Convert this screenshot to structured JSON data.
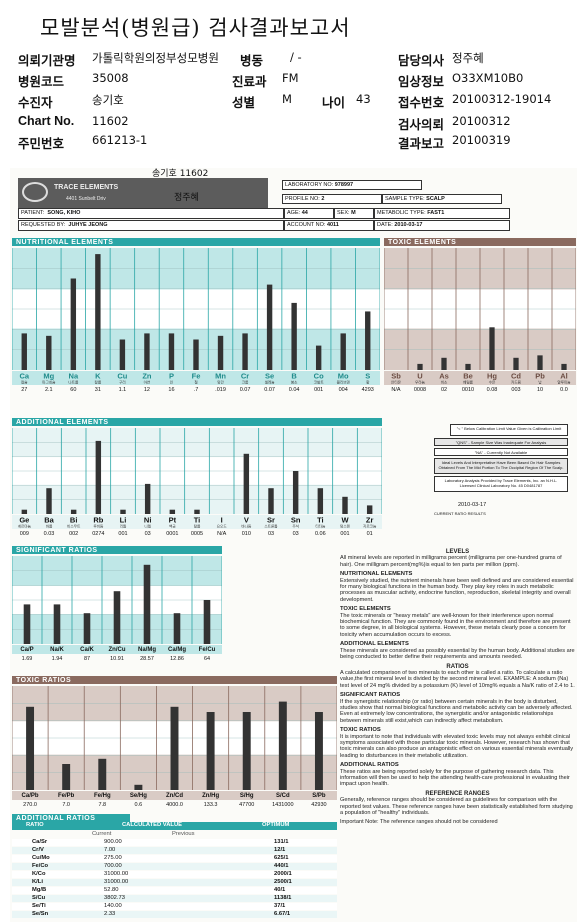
{
  "title": "모발분석(병원급) 검사결과보고서",
  "header": {
    "rows": [
      [
        {
          "label": "의뢰기관명",
          "value": "가톨릭학원의정부성모병원"
        },
        {
          "label": "병동",
          "value": "/ -"
        },
        {
          "label": "담당의사",
          "value": "정주혜"
        }
      ],
      [
        {
          "label": "병원코드",
          "value": "35008"
        },
        {
          "label": "진료과",
          "value": "FM"
        },
        {
          "label": "임상정보",
          "value": "O33XM10B0"
        }
      ],
      [
        {
          "label": "수진자",
          "value": "송기호"
        },
        {
          "label": "성별",
          "value": "M"
        },
        {
          "label": "나이",
          "value": "43"
        },
        {
          "label": "접수번호",
          "value": "20100312-19014"
        }
      ],
      [
        {
          "label": "Chart No.",
          "value": "11602"
        },
        {
          "label": "검사의뢰",
          "value": "20100312"
        }
      ],
      [
        {
          "label": "주민번호",
          "value": "661213-1"
        },
        {
          "label": "결과보고",
          "value": "20100319"
        }
      ]
    ]
  },
  "report": {
    "handwritten": [
      "송기호 11602",
      "정주혜"
    ],
    "lab_name": "TRACE ELEMENTS",
    "lab_address": "4401 Sunbelt Driv",
    "fields": {
      "lab_no_label": "LABORATORY NO:",
      "lab_no": "978997",
      "profile_no_label": "PROFILE NO:",
      "profile_no": "2",
      "sample_type_label": "SAMPLE TYPE:",
      "sample_type": "SCALP",
      "patient_label": "PATIENT:",
      "patient": "SONG, KIHO",
      "age_label": "AGE:",
      "age": "44",
      "sex_label": "SEX:",
      "sex": "M",
      "metabolic_label": "METABOLIC TYPE:",
      "metabolic": "FAST1",
      "requested_label": "REQUESTED BY:",
      "requested": "JUHYE JEONG",
      "account_label": "ACCOUNT NO:",
      "account": "4011",
      "date_label": "DATE:",
      "date": "2010-03-17"
    },
    "sections": {
      "nutritional": "NUTRITIONAL ELEMENTS",
      "toxic": "TOXIC ELEMENTS",
      "additional": "ADDITIONAL ELEMENTS",
      "significant": "SIGNIFICANT RATIOS",
      "toxic_ratios": "TOXIC RATIOS",
      "additional_ratios": "ADDITIONAL RATIOS"
    },
    "notes": {
      "below": "\"< \" Below Calibration Limit Value Given is Calibration Limit",
      "qns": "\"QNS\" - Sample Size Was Inadequate For Analysis",
      "na": "\"NA\" - Currently Not Available",
      "ideal": "Ideal Levels And Interpretative Have Been Based On Hair Samples Obtained From The Mid Portion To The Occipital Region Of The Scalp.",
      "lab": "Laboratory Analysis Provided by Trace Elements, Inc. an N.H.L. Licensed Clinical Laboratory No. 45 D0481787",
      "date": "2010-03-17",
      "current": "CURRENT RATIO RESULTS"
    },
    "ratio_table": {
      "headers": [
        "RATIO",
        "CALCULATED VALUE",
        "OPTIMUM"
      ],
      "subheaders": [
        "Current",
        "Previous"
      ],
      "rows": [
        [
          "Ca/Sr",
          "900.00",
          "131/1"
        ],
        [
          "Cr/V",
          "7.00",
          "12/1"
        ],
        [
          "Cu/Mo",
          "275.00",
          "625/1"
        ],
        [
          "Fe/Co",
          "700.00",
          "440/1"
        ],
        [
          "K/Co",
          "31000.00",
          "2000/1"
        ],
        [
          "K/Li",
          "31000.00",
          "2500/1"
        ],
        [
          "Mg/B",
          "52.80",
          "40/1"
        ],
        [
          "S/Cu",
          "3802.73",
          "1138/1"
        ],
        [
          "Se/Ti",
          "140.00",
          "37/1"
        ],
        [
          "Se/Sn",
          "2.33",
          "6.67/1"
        ]
      ]
    },
    "text": {
      "levels_h": "LEVELS",
      "levels": "All mineral levels are reported in milligrams percent (milligrams per one-hundred grams of hair). One milligram percent(mg%)is equal to ten parts per million (ppm).",
      "nutri_h": "NUTRITIONAL ELEMENTS",
      "nutri": "Extensively studied, the nutrient minerals have been well defined and are considered essential for many biological functions in the human body. They play key roles in such metabolic processes as muscular activity, endocrine function, reproduction, skeletal integrity and overall development.",
      "toxic_h": "TOXIC ELEMENTS",
      "toxic": "The toxic minerals or \"heavy metals\" are well-known for their interference upon normal biochemical function. They are commonly found in the environment and therefore are present to some degree, in all biological systems. However, these metals clearly pose a concern for toxicity when accumulation occurs to excess.",
      "addl_h": "ADDITIONAL ELEMENTS",
      "addl": "These minerals are considered as possibly essential by the human body. Additional studies are being conducted to better define their requirements and amounts needed.",
      "ratios_h": "RATIOS",
      "ratios": "A calculated comparison of two minerals to each other is called a ratio. To calculate a ratio value,the first mineral level is divided by the second mineral level. EXAMPLE: A sodium (Na) test level of 24 mg% divided by a potassium (K) level of 10mg% equals a Na/K ratio of 2.4 to 1.",
      "sig_h": "SIGNIFICANT RATIOS",
      "sig": "If the synergistic relationship (or ratio) between certain minerals in the body is disturbed, studies show that normal biological functions and metabolic activity can be adversely affected. Even at extremely low concentrations, the synergistic and/or antagonistic relationships between minerals still exist,which can indirectly affect metabolism.",
      "tox_h": "TOXIC RATIOS",
      "tox": "It is important to note that individuals with elevated toxic levels may not always exhibit clinical symptoms associated with those particular toxic minerals. However, research has shown that toxic minerals can also produce an antagonistic effect on various essential minerals eventually leading to disturbances in their metabolic utilization.",
      "addr_h": "ADDITIONAL RATIOS",
      "addr": "These ratios are being reported solely for the purpose of gathering research data. This information will then be used to help the attending health-care professional in evaluating their impact upon health.",
      "ref_h": "REFERENCE RANGES",
      "ref": "Generally, reference ranges should be considered as guidelines for comparison with the reported test values. These reference ranges have been statistically established form studying a population of \"healthy\" individuals.",
      "important": "Important Note: The reference ranges should not be considered"
    }
  },
  "chart_data": [
    {
      "type": "bar",
      "title": "NUTRITIONAL ELEMENTS",
      "categories": [
        "Ca",
        "Mg",
        "Na",
        "K",
        "Cu",
        "Zn",
        "P",
        "Fe",
        "Mn",
        "Cr",
        "Se",
        "B",
        "Co",
        "Mo",
        "S"
      ],
      "sublabels": [
        "칼슘",
        "마그네슘",
        "나트륨",
        "칼륨",
        "구리",
        "아연",
        "인",
        "철",
        "망간",
        "크롬",
        "셀레늄",
        "붕소",
        "코발트",
        "몰리브덴",
        "황"
      ],
      "values": [
        "27",
        "2.1",
        "60",
        "31",
        "1.1",
        "12",
        "16",
        ".7",
        ".019",
        "0.07",
        "0.07",
        "0.04",
        "001",
        "004",
        "4293"
      ],
      "bar_levels": [
        0.3,
        0.28,
        0.75,
        0.95,
        0.25,
        0.3,
        0.3,
        0.25,
        0.28,
        0.3,
        0.7,
        0.55,
        0.2,
        0.3,
        0.48
      ]
    },
    {
      "type": "bar",
      "title": "TOXIC ELEMENTS",
      "categories": [
        "Sb",
        "U",
        "As",
        "Be",
        "Hg",
        "Cd",
        "Pb",
        "Al"
      ],
      "sublabels": [
        "안티몬",
        "우라늄",
        "비소",
        "베릴륨",
        "수은",
        "카드뮴",
        "납",
        "알루미늄"
      ],
      "values": [
        "N/A",
        "0008",
        "02",
        "0010",
        "0.08",
        "003",
        "10",
        "0.0"
      ],
      "bar_levels": [
        0.0,
        0.05,
        0.1,
        0.05,
        0.35,
        0.1,
        0.12,
        0.05
      ]
    },
    {
      "type": "bar",
      "title": "ADDITIONAL ELEMENTS",
      "categories": [
        "Ge",
        "Ba",
        "Bi",
        "Rb",
        "Li",
        "Ni",
        "Pt",
        "Ti",
        "I",
        "V",
        "Sr",
        "Sn",
        "Ti",
        "W",
        "Zr"
      ],
      "sublabels": [
        "게르마늄",
        "바륨",
        "비스무트",
        "루비듐",
        "리튬",
        "니켈",
        "백금",
        "탈륨",
        "요오드",
        "바나듐",
        "스트론튬",
        "주석",
        "티타늄",
        "텅스텐",
        "지르코늄"
      ],
      "values": [
        "009",
        "0.03",
        "002",
        "0274",
        "001",
        "03",
        "0001",
        "0005",
        "N/A",
        "010",
        "03",
        "03",
        "0.06",
        "001",
        "01"
      ],
      "bar_levels": [
        0.05,
        0.3,
        0.05,
        0.85,
        0.05,
        0.35,
        0.05,
        0.05,
        0.0,
        0.7,
        0.3,
        0.5,
        0.3,
        0.2,
        0.1
      ]
    },
    {
      "type": "bar",
      "title": "SIGNIFICANT RATIOS",
      "categories": [
        "Ca/P",
        "Na/K",
        "Ca/K",
        "Zn/Cu",
        "Na/Mg",
        "Ca/Mg",
        "Fe/Cu"
      ],
      "values": [
        "1.69",
        "1.94",
        "87",
        "10.91",
        "28.57",
        "12.86",
        "64"
      ],
      "bar_levels": [
        0.45,
        0.45,
        0.35,
        0.6,
        0.9,
        0.35,
        0.5
      ]
    },
    {
      "type": "bar",
      "title": "TOXIC RATIOS",
      "categories": [
        "Ca/Pb",
        "Fe/Pb",
        "Fe/Hg",
        "Se/Hg",
        "Zn/Cd",
        "Zn/Hg",
        "S/Hg",
        "S/Cd",
        "S/Pb"
      ],
      "values": [
        "270.0",
        "7.0",
        "7.8",
        "0.6",
        "4000.0",
        "133.3",
        "47700",
        "1431000",
        "42930"
      ],
      "bar_levels": [
        0.8,
        0.25,
        0.3,
        0.05,
        0.8,
        0.75,
        0.75,
        0.85,
        0.75
      ]
    }
  ],
  "colors": {
    "teal": "#2aa6a6",
    "teal_light": "#bfe7e7",
    "brown": "#8a6a5f",
    "bar": "#333333"
  }
}
